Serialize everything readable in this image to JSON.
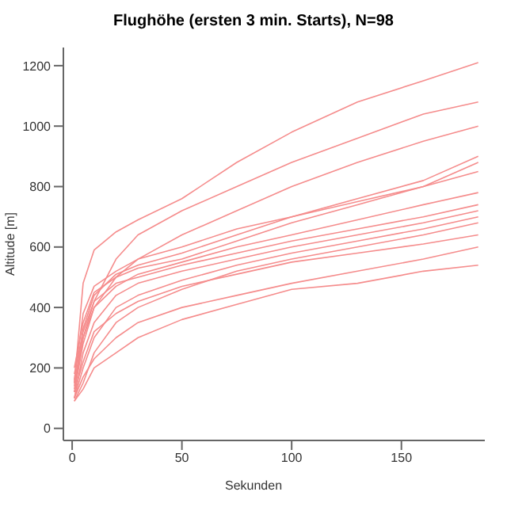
{
  "chart_data": {
    "type": "line",
    "title": "Flughöhe (ersten 3 min. Starts), N=98",
    "xlabel": "Sekunden",
    "ylabel": "Altitude [m]",
    "x": [
      1,
      5,
      10,
      20,
      30,
      50,
      75,
      100,
      130,
      160,
      185
    ],
    "series": [
      {
        "color": "#f58c8c",
        "values": [
          150,
          480,
          590,
          650,
          690,
          760,
          880,
          980,
          1080,
          1150,
          1210
        ]
      },
      {
        "color": "#f58c8c",
        "values": [
          130,
          300,
          420,
          560,
          640,
          720,
          800,
          880,
          960,
          1040,
          1080
        ]
      },
      {
        "color": "#f58c8c",
        "values": [
          120,
          280,
          400,
          500,
          560,
          640,
          720,
          800,
          880,
          950,
          1000
        ]
      },
      {
        "color": "#f58c8c",
        "values": [
          200,
          350,
          450,
          500,
          530,
          560,
          620,
          680,
          740,
          800,
          850
        ]
      },
      {
        "color": "#f58c8c",
        "values": [
          150,
          300,
          400,
          470,
          510,
          550,
          600,
          640,
          690,
          740,
          780
        ]
      },
      {
        "color": "#f58c8c",
        "values": [
          180,
          320,
          420,
          480,
          500,
          540,
          580,
          620,
          660,
          700,
          740
        ]
      },
      {
        "color": "#f58c8c",
        "values": [
          100,
          250,
          350,
          440,
          480,
          520,
          560,
          600,
          640,
          680,
          720
        ]
      },
      {
        "color": "#f58c8c",
        "values": [
          100,
          200,
          300,
          400,
          440,
          490,
          540,
          580,
          620,
          660,
          700
        ]
      },
      {
        "color": "#f58c8c",
        "values": [
          90,
          150,
          250,
          350,
          400,
          460,
          520,
          560,
          600,
          640,
          680
        ]
      },
      {
        "color": "#f58c8c",
        "values": [
          120,
          220,
          320,
          380,
          420,
          470,
          510,
          550,
          580,
          610,
          640
        ]
      },
      {
        "color": "#f58c8c",
        "values": [
          100,
          170,
          230,
          300,
          350,
          400,
          440,
          480,
          520,
          560,
          600
        ]
      },
      {
        "color": "#f58c8c",
        "values": [
          90,
          130,
          200,
          250,
          300,
          360,
          410,
          460,
          480,
          520,
          540
        ]
      },
      {
        "color": "#f58c8c",
        "values": [
          160,
          380,
          470,
          520,
          560,
          600,
          660,
          700,
          750,
          800,
          880
        ]
      },
      {
        "color": "#f58c8c",
        "values": [
          140,
          330,
          440,
          510,
          540,
          580,
          640,
          700,
          760,
          820,
          900
        ]
      }
    ],
    "xlim": [
      -4,
      188
    ],
    "xticks": [
      0,
      50,
      100,
      150
    ],
    "ylim": [
      -40,
      1260
    ],
    "yticks": [
      0,
      200,
      400,
      600,
      800,
      1000,
      1200
    ],
    "grid": false,
    "marker": "none",
    "line_style": "solid"
  }
}
